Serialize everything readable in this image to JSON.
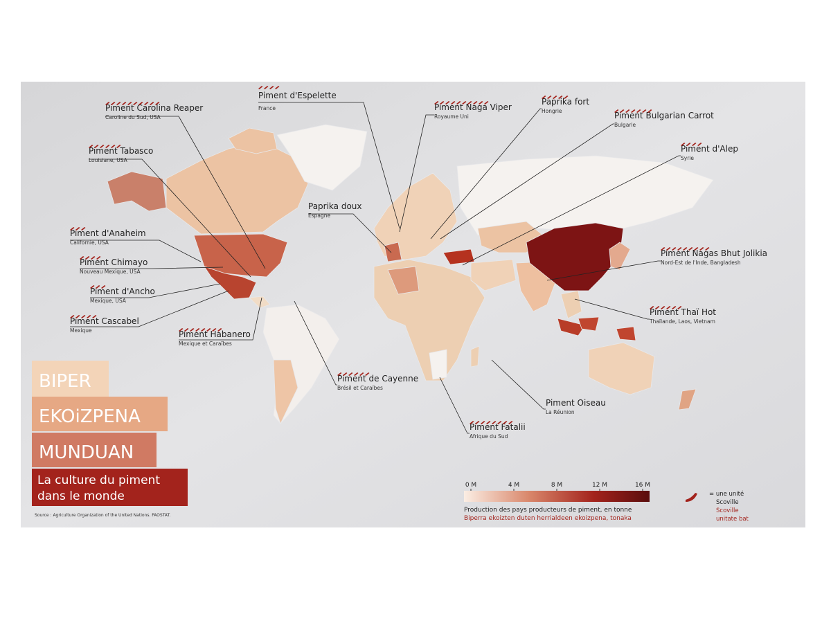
{
  "labels": [
    {
      "name": "Piment Carolina Reaper",
      "region": "Caroline du Sud, USA",
      "peppers": 10
    },
    {
      "name": "Piment Tabasco",
      "region": "Louisiane, USA",
      "peppers": 6
    },
    {
      "name": "Piment d'Anaheim",
      "region": "Californie, USA",
      "peppers": 3
    },
    {
      "name": "Piment Chimayo",
      "region": "Nouveau Mexique, USA",
      "peppers": 4
    },
    {
      "name": "Piment d'Ancho",
      "region": "Mexique, USA",
      "peppers": 3
    },
    {
      "name": "Piment Cascabel",
      "region": "Mexique",
      "peppers": 5
    },
    {
      "name": "Piment Habanero",
      "region": "Mexique et Caraïbes",
      "peppers": 8
    },
    {
      "name": "Piment d'Espelette",
      "region": "France",
      "peppers": 4
    },
    {
      "name": "Piment Naga Viper",
      "region": "Royaume Uni",
      "peppers": 10
    },
    {
      "name": "Paprika fort",
      "region": "Hongrie",
      "peppers": 5
    },
    {
      "name": "Piment Bulgarian Carrot",
      "region": "Bulgarie",
      "peppers": 7
    },
    {
      "name": "Piment d'Alep",
      "region": "Syrie",
      "peppers": 4
    },
    {
      "name": "Paprika doux",
      "region": "Espagne"
    },
    {
      "name": "Piment Nagas Bhut Jolikia",
      "region": "Nord-Est de l'Inde, Bangladesh",
      "peppers": 9
    },
    {
      "name": "Piment Thaï Hot",
      "region": "Thaïlande, Laos, Vietnam",
      "peppers": 6
    },
    {
      "name": "Piment de Cayenne",
      "region": "Brésil et Caraïbes",
      "peppers": 6
    },
    {
      "name": "Piment Oiseau",
      "region": "La Réunion"
    },
    {
      "name": "Piment Fatalii",
      "region": "Afrique du Sud",
      "peppers": 8
    }
  ],
  "title": {
    "lines": [
      "BIPER",
      "EKOiZPENA",
      "MUNDUAN"
    ],
    "subtitle": [
      "La culture du piment",
      "dans le monde"
    ],
    "source": "Source : Agriculture Organization of the United Nations. FAOSTAT."
  },
  "legend": {
    "ticks": [
      {
        "value": 0,
        "label": "0 M"
      },
      {
        "value": 4000000,
        "label": "4 M"
      },
      {
        "value": 8000000,
        "label": "8 M"
      },
      {
        "value": 12000000,
        "label": "12 M"
      },
      {
        "value": 16000000,
        "label": "16 M"
      }
    ],
    "caption": "Production des pays producteurs de piment, en tonne",
    "caption_eu": "Biperra ekoizten duten herrialdeen ekoizpena, tonaka",
    "unit": [
      "= une unité",
      "Scoville"
    ],
    "unit_eu": [
      "Scoville",
      "unitate bat"
    ]
  }
}
